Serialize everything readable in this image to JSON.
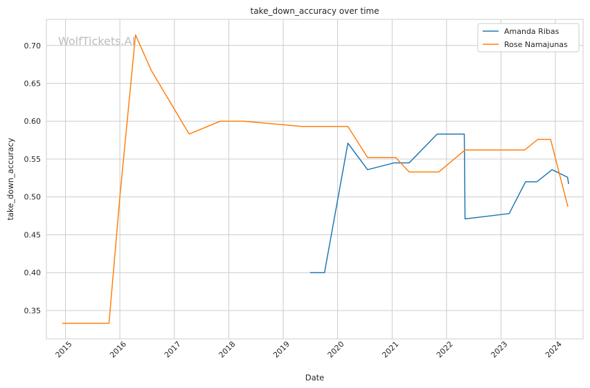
{
  "chart_data": {
    "type": "line",
    "title": "take_down_accuracy over time",
    "xlabel": "Date",
    "ylabel": "take_down_accuracy",
    "watermark": "WolfTickets.AI",
    "x_ticks": [
      "2015",
      "2016",
      "2017",
      "2018",
      "2019",
      "2020",
      "2021",
      "2022",
      "2023",
      "2024"
    ],
    "y_ticks": [
      "0.35",
      "0.40",
      "0.45",
      "0.50",
      "0.55",
      "0.60",
      "0.65",
      "0.70"
    ],
    "xlim": [
      "2014-08-26",
      "2024-07-05"
    ],
    "ylim": [
      0.3125,
      0.7345
    ],
    "grid": true,
    "legend_position": "top-right",
    "series": [
      {
        "name": "Amanda Ribas",
        "color": "#1f77b4",
        "points": [
          [
            "2019-06-30",
            0.4
          ],
          [
            "2019-10-05",
            0.4
          ],
          [
            "2020-03-10",
            0.571
          ],
          [
            "2020-07-20",
            0.536
          ],
          [
            "2021-01-15",
            0.545
          ],
          [
            "2021-04-25",
            0.545
          ],
          [
            "2021-10-30",
            0.583
          ],
          [
            "2022-04-30",
            0.583
          ],
          [
            "2022-05-05",
            0.471
          ],
          [
            "2023-02-25",
            0.478
          ],
          [
            "2023-06-15",
            0.52
          ],
          [
            "2023-08-30",
            0.52
          ],
          [
            "2023-12-10",
            0.536
          ],
          [
            "2024-03-23",
            0.526
          ],
          [
            "2024-03-30",
            0.517
          ]
        ]
      },
      {
        "name": "Rose Namajunas",
        "color": "#ff7f0e",
        "points": [
          [
            "2014-12-10",
            0.333
          ],
          [
            "2015-10-20",
            0.333
          ],
          [
            "2016-01-01",
            0.5
          ],
          [
            "2016-04-15",
            0.714
          ],
          [
            "2016-07-30",
            0.667
          ],
          [
            "2017-04-10",
            0.583
          ],
          [
            "2017-11-05",
            0.6
          ],
          [
            "2018-04-10",
            0.6
          ],
          [
            "2019-05-10",
            0.593
          ],
          [
            "2020-03-10",
            0.593
          ],
          [
            "2020-07-20",
            0.552
          ],
          [
            "2021-01-25",
            0.552
          ],
          [
            "2021-04-25",
            0.533
          ],
          [
            "2021-11-10",
            0.533
          ],
          [
            "2022-05-05",
            0.562
          ],
          [
            "2023-06-10",
            0.562
          ],
          [
            "2023-09-05",
            0.576
          ],
          [
            "2023-11-30",
            0.576
          ],
          [
            "2024-03-25",
            0.487
          ]
        ]
      }
    ]
  }
}
